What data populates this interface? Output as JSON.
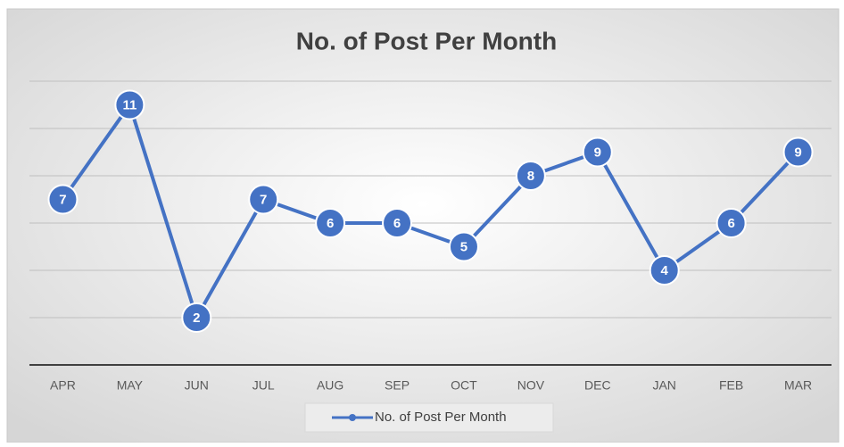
{
  "chart_data": {
    "type": "line",
    "title": "No. of Post Per Month",
    "categories": [
      "APR",
      "MAY",
      "JUN",
      "JUL",
      "AUG",
      "SEP",
      "OCT",
      "NOV",
      "DEC",
      "JAN",
      "FEB",
      "MAR"
    ],
    "series": [
      {
        "name": "No. of Post Per Month",
        "color": "#4472c4",
        "values": [
          7,
          11,
          2,
          7,
          6,
          6,
          5,
          8,
          9,
          4,
          6,
          9
        ]
      }
    ],
    "ylim": [
      0,
      12
    ],
    "yticks": [
      0,
      2,
      4,
      6,
      8,
      10,
      12
    ],
    "grid": true,
    "legend": "bottom",
    "data_labels": true
  }
}
